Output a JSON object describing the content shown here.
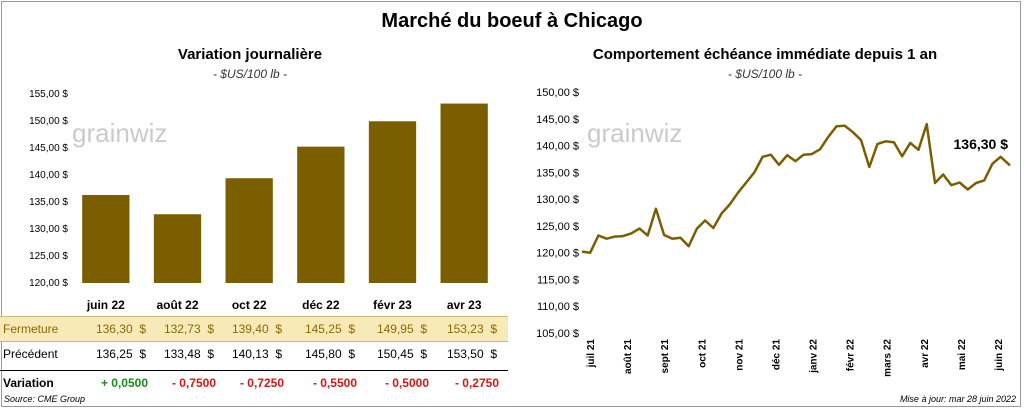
{
  "title": "Marché du boeuf à Chicago",
  "left_chart": {
    "title": "Variation journalière",
    "unit": "- $US/100 lb -",
    "watermark": "grainwiz"
  },
  "right_chart": {
    "title": "Comportement échéance immédiate depuis 1 an",
    "unit": "- $US/100 lb -",
    "watermark": "grainwiz",
    "last_value_label": "136,30 $"
  },
  "chart_data": [
    {
      "type": "bar",
      "title": "Variation journalière",
      "categories": [
        "juin 22",
        "août 22",
        "oct 22",
        "déc 22",
        "févr 23",
        "avr 23"
      ],
      "values": [
        136.3,
        132.73,
        139.4,
        145.25,
        149.95,
        153.23
      ],
      "ylim": [
        120,
        155
      ],
      "y_ticks": [
        "120,00 $",
        "125,00 $",
        "130,00 $",
        "135,00 $",
        "140,00 $",
        "145,00 $",
        "150,00 $",
        "155,00 $"
      ],
      "bar_color": "#7a5e00",
      "grid": false
    },
    {
      "type": "line",
      "title": "Comportement échéance immédiate depuis 1 an",
      "ylim": [
        105,
        150
      ],
      "y_ticks": [
        "105,00 $",
        "110,00 $",
        "115,00 $",
        "120,00 $",
        "125,00 $",
        "130,00 $",
        "135,00 $",
        "140,00 $",
        "145,00 $",
        "150,00 $"
      ],
      "x_ticks": [
        "juil 21",
        "août 21",
        "sept 21",
        "oct 21",
        "nov 21",
        "déc 21",
        "janv 22",
        "févr 22",
        "mars 22",
        "avr 22",
        "mai 22",
        "juin 22"
      ],
      "line_color": "#7a5e00",
      "grid": false,
      "series": [
        {
          "x": [
            "2021-06-28",
            "2021-07-05",
            "2021-07-12",
            "2021-07-19",
            "2021-07-26",
            "2021-08-02",
            "2021-08-09",
            "2021-08-16",
            "2021-08-23",
            "2021-08-30",
            "2021-09-06",
            "2021-09-13",
            "2021-09-20",
            "2021-09-27",
            "2021-10-04",
            "2021-10-11",
            "2021-10-18",
            "2021-10-25",
            "2021-11-01",
            "2021-11-08",
            "2021-11-15",
            "2021-11-22",
            "2021-11-29",
            "2021-12-06",
            "2021-12-13",
            "2021-12-20",
            "2021-12-27",
            "2022-01-03",
            "2022-01-10",
            "2022-01-17",
            "2022-01-24",
            "2022-01-31",
            "2022-02-07",
            "2022-02-14",
            "2022-02-21",
            "2022-02-28",
            "2022-03-07",
            "2022-03-14",
            "2022-03-21",
            "2022-03-28",
            "2022-04-04",
            "2022-04-11",
            "2022-04-18",
            "2022-04-25",
            "2022-05-02",
            "2022-05-09",
            "2022-05-16",
            "2022-05-23",
            "2022-05-30",
            "2022-06-06",
            "2022-06-13",
            "2022-06-20",
            "2022-06-28"
          ],
          "y": [
            120.2,
            120.0,
            123.2,
            122.6,
            123.0,
            123.1,
            123.6,
            124.5,
            123.2,
            128.2,
            123.3,
            122.6,
            122.8,
            121.2,
            124.5,
            126.0,
            124.6,
            127.3,
            129.0,
            131.2,
            133.1,
            135.0,
            137.9,
            138.3,
            136.4,
            138.2,
            137.1,
            138.3,
            138.4,
            139.3,
            141.6,
            143.6,
            143.7,
            142.5,
            141.0,
            136.0,
            140.3,
            140.8,
            140.6,
            138.0,
            140.5,
            139.2,
            144.0,
            133.0,
            134.6,
            132.6,
            133.1,
            131.8,
            133.0,
            133.5,
            136.6,
            137.9,
            136.3
          ]
        }
      ]
    }
  ],
  "table": {
    "rows": [
      {
        "label": "Fermeture",
        "values": [
          "136,30",
          "132,73",
          "139,40",
          "145,25",
          "149,95",
          "153,23"
        ]
      },
      {
        "label": "Précédent",
        "values": [
          "136,25",
          "133,48",
          "140,13",
          "145,80",
          "150,45",
          "153,50"
        ]
      },
      {
        "label": "Variation",
        "values": [
          "+ 0,0500",
          "- 0,7500",
          "- 0,7250",
          "- 0,5500",
          "- 0,5000",
          "- 0,2750"
        ]
      }
    ],
    "currency": "$"
  },
  "colors": {
    "accent": "#7a5e00",
    "highlight_row": "#f7e9b8",
    "positive": "#1a8a1a",
    "negative": "#d01818"
  },
  "source": "Source: CME Group",
  "updated": "Mise à jour: mar 28 juin 2022"
}
